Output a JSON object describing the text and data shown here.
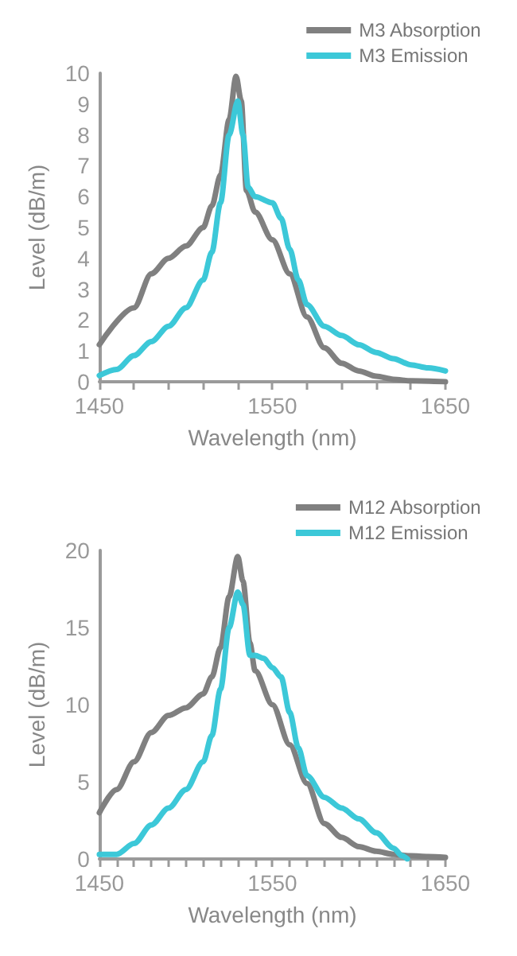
{
  "chart_data": [
    {
      "type": "line",
      "xlabel": "Wavelength (nm)",
      "ylabel": "Level (dB/m)",
      "xlim": [
        1450,
        1650
      ],
      "ylim": [
        0,
        10
      ],
      "xticks": [
        1450,
        {
          "value": 1470,
          "label": null
        },
        {
          "value": 1490,
          "label": null
        },
        {
          "value": 1510,
          "label": null
        },
        {
          "value": 1530,
          "label": null
        },
        1550,
        {
          "value": 1570,
          "label": null
        },
        {
          "value": 1590,
          "label": null
        },
        {
          "value": 1610,
          "label": null
        },
        {
          "value": 1630,
          "label": null
        },
        1650
      ],
      "yticks": [
        0,
        1,
        2,
        3,
        4,
        5,
        6,
        7,
        8,
        9,
        10
      ],
      "grid": false,
      "legend": "top right",
      "marker": "none",
      "line_style": "solid",
      "series": [
        {
          "name": "M3 Absorption",
          "color": "#808080",
          "x": [
            1450,
            1470,
            1480,
            1490,
            1500,
            1510,
            1515,
            1520,
            1525,
            1529,
            1532,
            1535,
            1540,
            1550,
            1560,
            1570,
            1580,
            1590,
            1600,
            1610,
            1620,
            1630,
            1650
          ],
          "values": [
            1.2,
            2.4,
            3.5,
            4.0,
            4.4,
            5.0,
            5.7,
            6.7,
            8.5,
            9.9,
            9.1,
            6.2,
            5.5,
            4.6,
            3.5,
            2.1,
            1.1,
            0.6,
            0.35,
            0.18,
            0.08,
            0.03,
            0
          ]
        },
        {
          "name": "M3 Emission",
          "color": "#3cc8d8",
          "x": [
            1450,
            1460,
            1470,
            1480,
            1490,
            1500,
            1510,
            1515,
            1520,
            1525,
            1530,
            1533,
            1536,
            1540,
            1550,
            1555,
            1560,
            1565,
            1570,
            1580,
            1590,
            1600,
            1610,
            1620,
            1630,
            1640,
            1650
          ],
          "values": [
            0.2,
            0.4,
            0.85,
            1.3,
            1.8,
            2.4,
            3.3,
            4.2,
            5.8,
            8.0,
            9.1,
            8.0,
            6.3,
            6.0,
            5.8,
            5.3,
            4.3,
            3.3,
            2.5,
            1.8,
            1.5,
            1.2,
            0.95,
            0.75,
            0.55,
            0.45,
            0.35
          ]
        }
      ]
    },
    {
      "type": "line",
      "xlabel": "Wavelength (nm)",
      "ylabel": "Level (dB/m)",
      "xlim": [
        1450,
        1650
      ],
      "ylim": [
        0,
        20
      ],
      "xticks": [
        1450,
        {
          "value": 1460,
          "label": null
        },
        {
          "value": 1470,
          "label": null
        },
        {
          "value": 1480,
          "label": null
        },
        {
          "value": 1490,
          "label": null
        },
        {
          "value": 1500,
          "label": null
        },
        {
          "value": 1510,
          "label": null
        },
        {
          "value": 1520,
          "label": null
        },
        {
          "value": 1530,
          "label": null
        },
        {
          "value": 1540,
          "label": null
        },
        1550,
        {
          "value": 1560,
          "label": null
        },
        {
          "value": 1570,
          "label": null
        },
        {
          "value": 1580,
          "label": null
        },
        {
          "value": 1590,
          "label": null
        },
        {
          "value": 1600,
          "label": null
        },
        {
          "value": 1610,
          "label": null
        },
        {
          "value": 1620,
          "label": null
        },
        {
          "value": 1630,
          "label": null
        },
        {
          "value": 1640,
          "label": null
        },
        1650
      ],
      "yticks": [
        0,
        5,
        10,
        15,
        20
      ],
      "grid": false,
      "legend": "top right",
      "marker": "none",
      "line_style": "solid",
      "series": [
        {
          "name": "M12 Absorption",
          "color": "#808080",
          "x": [
            1450,
            1460,
            1470,
            1480,
            1490,
            1500,
            1510,
            1515,
            1520,
            1525,
            1530,
            1533,
            1537,
            1540,
            1550,
            1560,
            1570,
            1580,
            1590,
            1600,
            1610,
            1620,
            1630,
            1640,
            1650
          ],
          "values": [
            3.0,
            4.5,
            6.3,
            8.2,
            9.3,
            9.8,
            10.7,
            11.8,
            13.7,
            17,
            19.6,
            18,
            14,
            12.2,
            10,
            7.4,
            4.9,
            2.3,
            1.4,
            0.8,
            0.5,
            0.3,
            0.2,
            0.15,
            0.1
          ]
        },
        {
          "name": "M12 Emission",
          "color": "#3cc8d8",
          "x": [
            1450,
            1460,
            1470,
            1480,
            1490,
            1500,
            1510,
            1515,
            1520,
            1525,
            1530,
            1533,
            1537,
            1540,
            1545,
            1550,
            1555,
            1560,
            1565,
            1570,
            1580,
            1590,
            1600,
            1610,
            1620,
            1625,
            1628
          ],
          "values": [
            0.3,
            0.3,
            1.0,
            2.2,
            3.3,
            4.5,
            6.3,
            8,
            11,
            15,
            17.3,
            16.5,
            13.2,
            13.2,
            13.0,
            12.4,
            11.8,
            9.5,
            7.2,
            5.4,
            4.0,
            3.3,
            2.6,
            1.7,
            0.7,
            0.2,
            0
          ]
        }
      ]
    }
  ]
}
